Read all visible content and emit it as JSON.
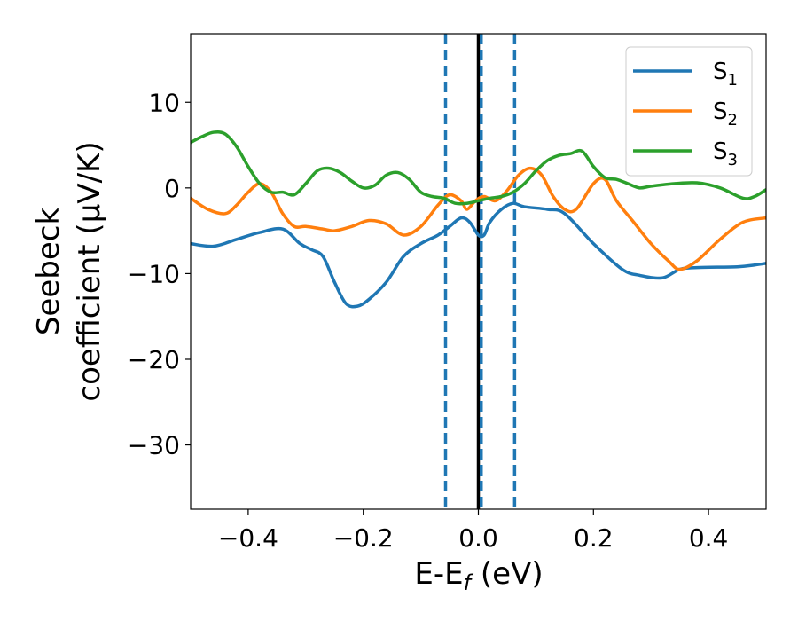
{
  "chart_data": {
    "type": "line",
    "xlabel": "E-E",
    "xlabel_sub": "f",
    "xlabel_unit": " (eV)",
    "ylabel_line1": "Seebeck",
    "ylabel_line2": "coefficient  (μV/K)",
    "xlim": [
      -0.5,
      0.5
    ],
    "ylim": [
      -37.5,
      18
    ],
    "xticks": [
      -0.4,
      -0.2,
      0.0,
      0.2,
      0.4
    ],
    "xtick_labels": [
      "−0.4",
      "−0.2",
      "0.0",
      "0.2",
      "0.4"
    ],
    "yticks": [
      10,
      0,
      -10,
      -20,
      -30
    ],
    "ytick_labels": [
      "10",
      "0",
      "−10",
      "−20",
      "−30"
    ],
    "grid": false,
    "legend_position": "top-right",
    "vlines": [
      {
        "x": -0.057,
        "style": "dashed",
        "color": "#1f77b4"
      },
      {
        "x": 0.0,
        "style": "solid",
        "color": "#000000"
      },
      {
        "x": 0.005,
        "style": "dashed",
        "color": "#1f77b4"
      },
      {
        "x": 0.063,
        "style": "dashed",
        "color": "#1f77b4"
      }
    ],
    "series": [
      {
        "name": "S",
        "sub": "1",
        "color": "#1f77b4",
        "x": [
          -0.5,
          -0.46,
          -0.42,
          -0.38,
          -0.34,
          -0.31,
          -0.29,
          -0.27,
          -0.25,
          -0.23,
          -0.21,
          -0.19,
          -0.16,
          -0.13,
          -0.1,
          -0.07,
          -0.05,
          -0.03,
          -0.015,
          0.0,
          0.01,
          0.02,
          0.04,
          0.06,
          0.08,
          0.12,
          0.15,
          0.2,
          0.25,
          0.28,
          0.32,
          0.35,
          0.38,
          0.45,
          0.48,
          0.5
        ],
        "y": [
          -6.5,
          -6.8,
          -6.0,
          -5.2,
          -4.8,
          -6.5,
          -7.2,
          -8.0,
          -11.0,
          -13.5,
          -13.8,
          -13.0,
          -11.0,
          -8.0,
          -6.5,
          -5.5,
          -4.5,
          -3.5,
          -4.0,
          -5.5,
          -5.5,
          -4.0,
          -2.5,
          -1.8,
          -2.2,
          -2.5,
          -3.0,
          -6.5,
          -9.5,
          -10.2,
          -10.5,
          -9.5,
          -9.3,
          -9.2,
          -9.0,
          -8.8
        ]
      },
      {
        "name": "S",
        "sub": "2",
        "color": "#ff7f0e",
        "x": [
          -0.5,
          -0.47,
          -0.44,
          -0.42,
          -0.4,
          -0.38,
          -0.36,
          -0.34,
          -0.32,
          -0.3,
          -0.27,
          -0.25,
          -0.22,
          -0.19,
          -0.16,
          -0.13,
          -0.1,
          -0.07,
          -0.05,
          -0.03,
          -0.02,
          -0.005,
          0.01,
          0.03,
          0.05,
          0.07,
          0.09,
          0.11,
          0.13,
          0.15,
          0.17,
          0.2,
          0.22,
          0.24,
          0.27,
          0.3,
          0.33,
          0.35,
          0.38,
          0.42,
          0.46,
          0.5
        ],
        "y": [
          -1.2,
          -2.5,
          -3.0,
          -2.0,
          -0.5,
          0.5,
          -0.5,
          -3.0,
          -4.5,
          -4.5,
          -4.8,
          -5.0,
          -4.5,
          -3.8,
          -4.2,
          -5.5,
          -4.5,
          -2.0,
          -0.8,
          -1.5,
          -2.5,
          -1.5,
          -1.0,
          -1.5,
          -0.3,
          1.5,
          2.3,
          1.5,
          -1.0,
          -2.5,
          -2.5,
          0.5,
          1.0,
          -1.5,
          -4.0,
          -6.5,
          -8.5,
          -9.5,
          -8.5,
          -6.0,
          -4.0,
          -3.5
        ]
      },
      {
        "name": "S",
        "sub": "3",
        "color": "#2ca02c",
        "x": [
          -0.5,
          -0.48,
          -0.46,
          -0.44,
          -0.42,
          -0.4,
          -0.38,
          -0.36,
          -0.34,
          -0.32,
          -0.3,
          -0.28,
          -0.26,
          -0.24,
          -0.22,
          -0.2,
          -0.18,
          -0.16,
          -0.14,
          -0.12,
          -0.1,
          -0.08,
          -0.06,
          -0.04,
          -0.02,
          0.0,
          0.02,
          0.04,
          0.06,
          0.08,
          0.1,
          0.12,
          0.14,
          0.16,
          0.18,
          0.2,
          0.22,
          0.24,
          0.26,
          0.28,
          0.3,
          0.34,
          0.38,
          0.42,
          0.46,
          0.48,
          0.5
        ],
        "y": [
          5.3,
          6.0,
          6.5,
          6.3,
          4.8,
          2.5,
          0.5,
          -0.5,
          -0.5,
          -0.8,
          0.5,
          2.0,
          2.3,
          1.8,
          0.8,
          0.0,
          0.3,
          1.5,
          1.8,
          1.0,
          -0.5,
          -1.0,
          -1.2,
          -1.8,
          -1.8,
          -1.5,
          -1.2,
          -1.0,
          -0.5,
          0.5,
          2.0,
          3.2,
          3.8,
          4.0,
          4.3,
          2.5,
          1.2,
          1.0,
          0.5,
          0.0,
          0.2,
          0.5,
          0.6,
          0.0,
          -1.2,
          -1.0,
          -0.2
        ]
      }
    ]
  }
}
